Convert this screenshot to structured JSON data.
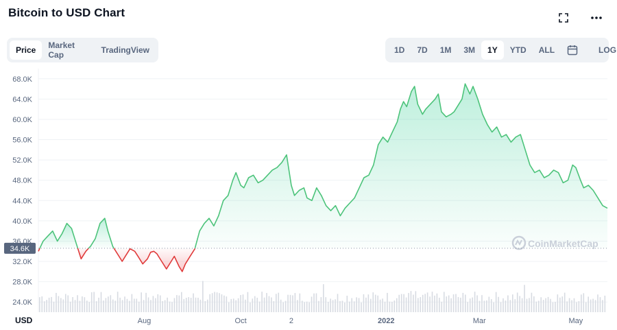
{
  "header": {
    "title": "Bitcoin to USD Chart"
  },
  "tabs": [
    {
      "label": "Price",
      "active": true
    },
    {
      "label": "Market Cap",
      "active": false
    },
    {
      "label": "TradingView",
      "active": false
    }
  ],
  "ranges": [
    {
      "label": "1D",
      "active": false
    },
    {
      "label": "7D",
      "active": false
    },
    {
      "label": "1M",
      "active": false
    },
    {
      "label": "3M",
      "active": false
    },
    {
      "label": "1Y",
      "active": true
    },
    {
      "label": "YTD",
      "active": false
    },
    {
      "label": "ALL",
      "active": false
    }
  ],
  "log_label": "LOG",
  "icons": {
    "expand": "expand-icon",
    "more": "more-dots-icon",
    "calendar": "calendar-icon",
    "watermark": "coinmarketcap-logo-icon"
  },
  "colors": {
    "up": "#16c784",
    "down": "#ea3943",
    "line_up": "#4cc37a",
    "line_down": "#e03a3a",
    "grid": "#eff2f5",
    "current_tag": "#58667e"
  },
  "watermark": "CoinMarketCap",
  "chart_data": {
    "type": "area",
    "title": "Bitcoin to USD Chart",
    "currency_label": "USD",
    "y_ticks": [
      "68.0K",
      "64.0K",
      "60.0K",
      "56.0K",
      "52.0K",
      "48.0K",
      "44.0K",
      "40.0K",
      "36.0K",
      "32.0K",
      "28.0K",
      "24.0K"
    ],
    "y_tick_values": [
      68000,
      64000,
      60000,
      56000,
      52000,
      48000,
      44000,
      40000,
      36000,
      32000,
      28000,
      24000
    ],
    "ylim": [
      22000,
      70000
    ],
    "x_ticks": [
      {
        "label": "Aug",
        "date": "2021-08-01"
      },
      {
        "label": "Oct",
        "date": "2021-10-01"
      },
      {
        "label": "2",
        "date": "2021-11-02"
      },
      {
        "label": "2022",
        "date": "2022-01-01"
      },
      {
        "label": "Mar",
        "date": "2022-03-01"
      },
      {
        "label": "May",
        "date": "2022-05-01"
      }
    ],
    "xlim": [
      "2021-05-26",
      "2022-05-21"
    ],
    "baseline_value": 34600,
    "baseline_label": "34.6K",
    "series": [
      {
        "points": [
          [
            "2021-05-26",
            34000
          ],
          [
            "2021-05-29",
            36000
          ],
          [
            "2021-06-01",
            37000
          ],
          [
            "2021-06-04",
            38000
          ],
          [
            "2021-06-07",
            36000
          ],
          [
            "2021-06-10",
            37500
          ],
          [
            "2021-06-13",
            39500
          ],
          [
            "2021-06-16",
            38500
          ],
          [
            "2021-06-19",
            35500
          ],
          [
            "2021-06-22",
            32500
          ],
          [
            "2021-06-25",
            34000
          ],
          [
            "2021-06-28",
            35000
          ],
          [
            "2021-07-01",
            36500
          ],
          [
            "2021-07-04",
            39500
          ],
          [
            "2021-07-07",
            40500
          ],
          [
            "2021-07-09",
            38000
          ],
          [
            "2021-07-12",
            35000
          ],
          [
            "2021-07-15",
            33500
          ],
          [
            "2021-07-18",
            32000
          ],
          [
            "2021-07-20",
            33000
          ],
          [
            "2021-07-23",
            34500
          ],
          [
            "2021-07-26",
            34000
          ],
          [
            "2021-07-28",
            33000
          ],
          [
            "2021-07-31",
            31500
          ],
          [
            "2021-08-03",
            32500
          ],
          [
            "2021-08-05",
            33800
          ],
          [
            "2021-08-07",
            34000
          ],
          [
            "2021-08-09",
            33500
          ],
          [
            "2021-08-12",
            32000
          ],
          [
            "2021-08-15",
            30500
          ],
          [
            "2021-08-18",
            32000
          ],
          [
            "2021-08-20",
            33000
          ],
          [
            "2021-08-23",
            31000
          ],
          [
            "2021-08-25",
            30000
          ],
          [
            "2021-08-27",
            31500
          ],
          [
            "2021-08-30",
            33000
          ],
          [
            "2021-09-02",
            34500
          ],
          [
            "2021-09-05",
            38000
          ],
          [
            "2021-09-08",
            39500
          ],
          [
            "2021-09-11",
            40500
          ],
          [
            "2021-09-14",
            39000
          ],
          [
            "2021-09-17",
            41000
          ],
          [
            "2021-09-20",
            44000
          ],
          [
            "2021-09-23",
            45000
          ],
          [
            "2021-09-26",
            48000
          ],
          [
            "2021-09-28",
            49500
          ],
          [
            "2021-10-01",
            47000
          ],
          [
            "2021-10-03",
            46500
          ],
          [
            "2021-10-06",
            48500
          ],
          [
            "2021-10-09",
            49000
          ],
          [
            "2021-10-12",
            47500
          ],
          [
            "2021-10-15",
            48000
          ],
          [
            "2021-10-18",
            49000
          ],
          [
            "2021-10-21",
            50000
          ],
          [
            "2021-10-24",
            50500
          ],
          [
            "2021-10-27",
            51500
          ],
          [
            "2021-10-30",
            53000
          ],
          [
            "2021-11-02",
            47000
          ],
          [
            "2021-11-04",
            45000
          ],
          [
            "2021-11-07",
            46000
          ],
          [
            "2021-11-10",
            46500
          ],
          [
            "2021-11-12",
            44500
          ],
          [
            "2021-11-15",
            44000
          ],
          [
            "2021-11-18",
            46500
          ],
          [
            "2021-11-21",
            45000
          ],
          [
            "2021-11-24",
            43000
          ],
          [
            "2021-11-27",
            42000
          ],
          [
            "2021-11-30",
            43000
          ],
          [
            "2021-12-03",
            41000
          ],
          [
            "2021-12-06",
            42500
          ],
          [
            "2021-12-09",
            43500
          ],
          [
            "2021-12-12",
            44500
          ],
          [
            "2021-12-15",
            46500
          ],
          [
            "2021-12-18",
            48500
          ],
          [
            "2021-12-21",
            49000
          ],
          [
            "2021-12-24",
            51000
          ],
          [
            "2021-12-27",
            55000
          ],
          [
            "2021-12-30",
            56500
          ],
          [
            "2022-01-02",
            55500
          ],
          [
            "2022-01-05",
            57500
          ],
          [
            "2022-01-08",
            59500
          ],
          [
            "2022-01-10",
            62000
          ],
          [
            "2022-01-12",
            63500
          ],
          [
            "2022-01-14",
            62500
          ],
          [
            "2022-01-17",
            65500
          ],
          [
            "2022-01-19",
            66500
          ],
          [
            "2022-01-21",
            63000
          ],
          [
            "2022-01-24",
            61000
          ],
          [
            "2022-01-26",
            62000
          ],
          [
            "2022-01-29",
            63000
          ],
          [
            "2022-02-01",
            64000
          ],
          [
            "2022-02-03",
            65000
          ],
          [
            "2022-02-05",
            61500
          ],
          [
            "2022-02-08",
            60500
          ],
          [
            "2022-02-11",
            61000
          ],
          [
            "2022-02-13",
            61500
          ],
          [
            "2022-02-16",
            63000
          ],
          [
            "2022-02-18",
            64000
          ],
          [
            "2022-02-20",
            67000
          ],
          [
            "2022-02-23",
            65000
          ],
          [
            "2022-02-25",
            66500
          ],
          [
            "2022-02-28",
            64000
          ],
          [
            "2022-03-03",
            61000
          ],
          [
            "2022-03-06",
            59000
          ],
          [
            "2022-03-09",
            57500
          ],
          [
            "2022-03-12",
            58500
          ],
          [
            "2022-03-15",
            56500
          ],
          [
            "2022-03-18",
            57000
          ],
          [
            "2022-03-21",
            55500
          ],
          [
            "2022-03-24",
            56500
          ],
          [
            "2022-03-27",
            57000
          ],
          [
            "2022-03-30",
            54000
          ],
          [
            "2022-04-02",
            51000
          ],
          [
            "2022-04-05",
            49500
          ],
          [
            "2022-04-08",
            50000
          ],
          [
            "2022-04-11",
            48500
          ],
          [
            "2022-04-14",
            49000
          ],
          [
            "2022-04-17",
            50000
          ],
          [
            "2022-04-20",
            49500
          ],
          [
            "2022-04-23",
            47500
          ],
          [
            "2022-04-26",
            48000
          ],
          [
            "2022-04-29",
            51000
          ],
          [
            "2022-05-01",
            50500
          ],
          [
            "2022-05-04",
            48000
          ],
          [
            "2022-05-06",
            46500
          ],
          [
            "2022-05-09",
            47000
          ],
          [
            "2022-05-12",
            46000
          ],
          [
            "2022-05-15",
            44500
          ],
          [
            "2022-05-18",
            43000
          ],
          [
            "2022-05-21",
            42500
          ]
        ]
      }
    ],
    "volume_bars": 240,
    "grid": true
  }
}
